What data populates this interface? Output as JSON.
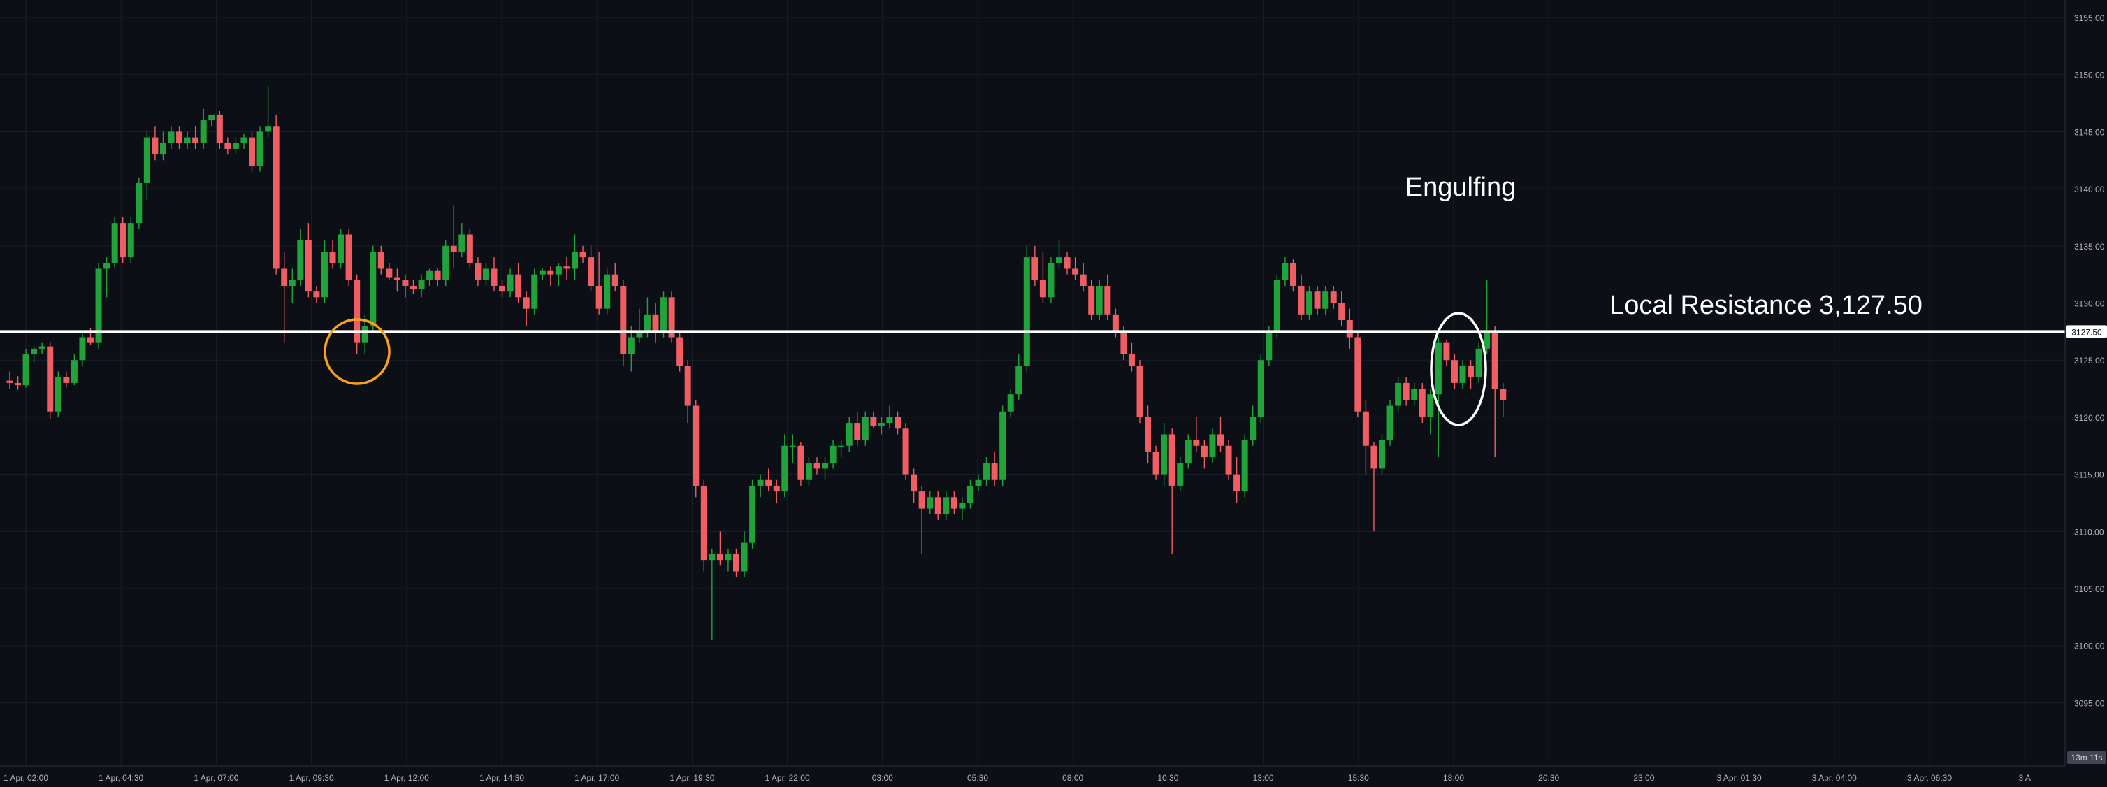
{
  "chart_data": {
    "type": "candlestick",
    "title": "",
    "xlabel": "",
    "ylabel": "",
    "ylim": [
      3092.5,
      3157.5
    ],
    "y_ticks": [
      "3155.00",
      "3150.00",
      "3145.00",
      "3140.00",
      "3135.00",
      "3130.00",
      "3125.00",
      "3120.00",
      "3115.00",
      "3110.00",
      "3105.00",
      "3100.00",
      "3095.00"
    ],
    "x_ticks": [
      "1 Apr, 02:00",
      "1 Apr, 04:30",
      "1 Apr, 07:00",
      "1 Apr, 09:30",
      "1 Apr, 12:00",
      "1 Apr, 14:30",
      "1 Apr, 17:00",
      "1 Apr, 19:30",
      "1 Apr, 22:00",
      "03:00",
      "05:30",
      "08:00",
      "10:30",
      "13:00",
      "15:30",
      "18:00",
      "20:30",
      "23:00",
      "3 Apr, 01:30",
      "3 Apr, 04:00",
      "3 Apr, 06:30",
      "3 A"
    ],
    "colors": {
      "up": "#089981",
      "up_bright": "#21a33b",
      "down": "#f23645",
      "down_bright": "#f05d63",
      "resistance": "#ffffff",
      "marker_orange": "#f7a21a",
      "marker_white": "#ffffff",
      "background": "#0d0f16",
      "grid": "#1c1f2b",
      "axis_text": "#b2b5be"
    },
    "resistance": {
      "value": 3127.5,
      "label": "3127.50"
    },
    "annotations": {
      "pattern": "Engulfing",
      "resistance_note": "Local Resistance 3,127.50"
    },
    "countdown": "13m 11s",
    "candles": [
      [
        3123.2,
        3124.0,
        3122.5,
        3123.0
      ],
      [
        3123.0,
        3123.6,
        3122.4,
        3122.8
      ],
      [
        3122.8,
        3126.0,
        3122.6,
        3125.5
      ],
      [
        3125.5,
        3126.2,
        3124.8,
        3126.0
      ],
      [
        3126.0,
        3126.5,
        3125.5,
        3126.2
      ],
      [
        3126.2,
        3126.6,
        3119.8,
        3120.5
      ],
      [
        3120.5,
        3124.0,
        3120.0,
        3123.5
      ],
      [
        3123.5,
        3124.0,
        3122.6,
        3123.0
      ],
      [
        3123.0,
        3125.5,
        3122.8,
        3125.0
      ],
      [
        3125.0,
        3127.5,
        3124.5,
        3127.0
      ],
      [
        3127.0,
        3127.8,
        3126.3,
        3126.5
      ],
      [
        3126.5,
        3133.5,
        3126.0,
        3133.0
      ],
      [
        3133.0,
        3134.0,
        3130.5,
        3133.5
      ],
      [
        3133.5,
        3137.5,
        3133.0,
        3137.0
      ],
      [
        3137.0,
        3137.5,
        3133.5,
        3134.0
      ],
      [
        3134.0,
        3137.5,
        3133.5,
        3137.0
      ],
      [
        3137.0,
        3141.0,
        3136.5,
        3140.5
      ],
      [
        3140.5,
        3145.0,
        3139.0,
        3144.5
      ],
      [
        3144.5,
        3145.5,
        3142.5,
        3143.0
      ],
      [
        3143.0,
        3145.0,
        3142.5,
        3144.0
      ],
      [
        3144.0,
        3145.5,
        3143.5,
        3145.0
      ],
      [
        3145.0,
        3145.5,
        3143.5,
        3144.0
      ],
      [
        3144.0,
        3145.0,
        3143.5,
        3144.5
      ],
      [
        3144.5,
        3145.5,
        3143.5,
        3144.0
      ],
      [
        3144.0,
        3147.0,
        3143.5,
        3146.0
      ],
      [
        3146.0,
        3146.5,
        3145.5,
        3146.5
      ],
      [
        3146.5,
        3146.8,
        3143.5,
        3144.0
      ],
      [
        3144.0,
        3144.5,
        3143.0,
        3143.5
      ],
      [
        3143.5,
        3144.5,
        3143.0,
        3144.0
      ],
      [
        3144.0,
        3144.8,
        3143.5,
        3144.5
      ],
      [
        3144.5,
        3145.0,
        3141.5,
        3142.0
      ],
      [
        3142.0,
        3145.5,
        3141.5,
        3145.0
      ],
      [
        3145.0,
        3149.0,
        3144.5,
        3145.5
      ],
      [
        3145.5,
        3146.5,
        3132.5,
        3133.0
      ],
      [
        3133.0,
        3134.5,
        3126.5,
        3131.5
      ],
      [
        3131.5,
        3133.0,
        3130.0,
        3132.0
      ],
      [
        3132.0,
        3136.5,
        3131.5,
        3135.5
      ],
      [
        3135.5,
        3137.0,
        3130.5,
        3131.0
      ],
      [
        3131.0,
        3131.5,
        3130.0,
        3130.5
      ],
      [
        3130.5,
        3135.5,
        3130.0,
        3134.5
      ],
      [
        3134.5,
        3135.5,
        3133.0,
        3133.5
      ],
      [
        3133.5,
        3136.5,
        3133.0,
        3136.0
      ],
      [
        3136.0,
        3136.5,
        3131.5,
        3132.0
      ],
      [
        3132.0,
        3132.5,
        3125.5,
        3126.5
      ],
      [
        3126.5,
        3129.0,
        3125.5,
        3128.0
      ],
      [
        3128.0,
        3135.0,
        3127.5,
        3134.5
      ],
      [
        3134.5,
        3135.0,
        3132.5,
        3133.0
      ],
      [
        3133.0,
        3133.5,
        3132.0,
        3132.2
      ],
      [
        3132.2,
        3133.0,
        3131.0,
        3132.0
      ],
      [
        3132.0,
        3132.5,
        3130.5,
        3131.5
      ],
      [
        3131.5,
        3132.0,
        3130.8,
        3131.2
      ],
      [
        3131.2,
        3132.5,
        3130.5,
        3132.0
      ],
      [
        3132.0,
        3133.0,
        3131.5,
        3132.8
      ],
      [
        3132.8,
        3133.0,
        3131.5,
        3132.0
      ],
      [
        3132.0,
        3135.5,
        3131.5,
        3135.0
      ],
      [
        3135.0,
        3138.5,
        3133.0,
        3134.5
      ],
      [
        3134.5,
        3137.0,
        3134.0,
        3136.0
      ],
      [
        3136.0,
        3136.5,
        3133.0,
        3133.5
      ],
      [
        3133.5,
        3134.0,
        3131.5,
        3132.0
      ],
      [
        3132.0,
        3133.5,
        3131.5,
        3133.0
      ],
      [
        3133.0,
        3134.0,
        3131.0,
        3131.5
      ],
      [
        3131.5,
        3132.0,
        3130.5,
        3131.0
      ],
      [
        3131.0,
        3133.0,
        3130.5,
        3132.5
      ],
      [
        3132.5,
        3133.5,
        3130.0,
        3130.5
      ],
      [
        3130.5,
        3131.0,
        3128.0,
        3129.5
      ],
      [
        3129.5,
        3133.0,
        3129.0,
        3132.5
      ],
      [
        3132.5,
        3133.0,
        3132.0,
        3132.8
      ],
      [
        3132.8,
        3133.2,
        3131.5,
        3132.5
      ],
      [
        3132.5,
        3133.5,
        3131.5,
        3133.2
      ],
      [
        3133.2,
        3134.0,
        3132.0,
        3133.0
      ],
      [
        3133.0,
        3136.0,
        3132.0,
        3134.5
      ],
      [
        3134.5,
        3135.0,
        3133.5,
        3134.0
      ],
      [
        3134.0,
        3135.0,
        3131.0,
        3131.5
      ],
      [
        3131.5,
        3134.5,
        3129.0,
        3129.5
      ],
      [
        3129.5,
        3133.0,
        3129.0,
        3132.5
      ],
      [
        3132.5,
        3133.5,
        3131.0,
        3131.5
      ],
      [
        3131.5,
        3132.0,
        3124.5,
        3125.5
      ],
      [
        3125.5,
        3128.0,
        3124.0,
        3127.0
      ],
      [
        3127.0,
        3129.5,
        3126.5,
        3127.5
      ],
      [
        3127.5,
        3130.5,
        3127.0,
        3129.0
      ],
      [
        3129.0,
        3130.0,
        3126.5,
        3127.5
      ],
      [
        3127.5,
        3131.0,
        3127.0,
        3130.5
      ],
      [
        3130.5,
        3131.0,
        3126.5,
        3127.0
      ],
      [
        3127.0,
        3127.5,
        3124.0,
        3124.5
      ],
      [
        3124.5,
        3125.0,
        3119.5,
        3121.0
      ],
      [
        3121.0,
        3121.5,
        3113.0,
        3114.0
      ],
      [
        3114.0,
        3114.5,
        3106.5,
        3107.5
      ],
      [
        3107.5,
        3108.5,
        3100.5,
        3108.0
      ],
      [
        3108.0,
        3110.0,
        3107.0,
        3107.5
      ],
      [
        3107.5,
        3108.5,
        3106.5,
        3108.0
      ],
      [
        3108.0,
        3108.5,
        3106.0,
        3106.5
      ],
      [
        3106.5,
        3110.0,
        3106.0,
        3109.0
      ],
      [
        3109.0,
        3114.5,
        3108.5,
        3114.0
      ],
      [
        3114.0,
        3115.0,
        3113.0,
        3114.5
      ],
      [
        3114.5,
        3115.5,
        3113.5,
        3114.0
      ],
      [
        3114.0,
        3114.5,
        3112.5,
        3113.5
      ],
      [
        3113.5,
        3118.5,
        3113.0,
        3117.5
      ],
      [
        3117.5,
        3118.5,
        3116.0,
        3117.5
      ],
      [
        3117.5,
        3117.8,
        3114.0,
        3114.5
      ],
      [
        3114.5,
        3116.5,
        3114.0,
        3116.0
      ],
      [
        3116.0,
        3116.5,
        3115.0,
        3115.5
      ],
      [
        3115.5,
        3116.5,
        3114.5,
        3116.0
      ],
      [
        3116.0,
        3118.0,
        3115.5,
        3117.5
      ],
      [
        3117.5,
        3118.0,
        3116.5,
        3117.5
      ],
      [
        3117.5,
        3120.0,
        3117.0,
        3119.5
      ],
      [
        3119.5,
        3120.5,
        3117.5,
        3118.0
      ],
      [
        3118.0,
        3120.5,
        3117.5,
        3120.0
      ],
      [
        3120.0,
        3120.5,
        3119.0,
        3119.2
      ],
      [
        3119.2,
        3120.0,
        3118.5,
        3119.5
      ],
      [
        3119.5,
        3121.0,
        3119.0,
        3120.0
      ],
      [
        3120.0,
        3120.5,
        3118.5,
        3119.0
      ],
      [
        3119.0,
        3119.5,
        3114.5,
        3115.0
      ],
      [
        3115.0,
        3115.5,
        3112.5,
        3113.5
      ],
      [
        3113.5,
        3114.0,
        3108.0,
        3112.0
      ],
      [
        3112.0,
        3113.5,
        3111.5,
        3113.0
      ],
      [
        3113.0,
        3113.5,
        3111.0,
        3111.5
      ],
      [
        3111.5,
        3113.5,
        3111.0,
        3113.0
      ],
      [
        3113.0,
        3113.5,
        3111.5,
        3112.0
      ],
      [
        3112.0,
        3113.0,
        3111.0,
        3112.5
      ],
      [
        3112.5,
        3114.5,
        3112.0,
        3114.0
      ],
      [
        3114.0,
        3115.0,
        3113.5,
        3114.5
      ],
      [
        3114.5,
        3116.5,
        3114.0,
        3116.0
      ],
      [
        3116.0,
        3117.0,
        3114.0,
        3114.5
      ],
      [
        3114.5,
        3121.0,
        3114.0,
        3120.5
      ],
      [
        3120.5,
        3122.5,
        3120.0,
        3122.0
      ],
      [
        3122.0,
        3125.5,
        3121.5,
        3124.5
      ],
      [
        3124.5,
        3135.0,
        3124.0,
        3134.0
      ],
      [
        3134.0,
        3135.0,
        3131.5,
        3132.0
      ],
      [
        3132.0,
        3134.5,
        3130.0,
        3130.5
      ],
      [
        3130.5,
        3134.0,
        3130.0,
        3133.5
      ],
      [
        3133.5,
        3135.5,
        3133.0,
        3134.0
      ],
      [
        3134.0,
        3134.5,
        3132.5,
        3133.0
      ],
      [
        3133.0,
        3134.0,
        3132.0,
        3132.5
      ],
      [
        3132.5,
        3133.5,
        3131.0,
        3131.5
      ],
      [
        3131.5,
        3132.0,
        3128.5,
        3129.0
      ],
      [
        3129.0,
        3132.0,
        3128.5,
        3131.5
      ],
      [
        3131.5,
        3132.5,
        3128.5,
        3129.0
      ],
      [
        3129.0,
        3129.5,
        3127.0,
        3127.5
      ],
      [
        3127.5,
        3128.0,
        3125.0,
        3125.5
      ],
      [
        3125.5,
        3126.5,
        3124.0,
        3124.5
      ],
      [
        3124.5,
        3125.0,
        3119.5,
        3120.0
      ],
      [
        3120.0,
        3121.0,
        3116.0,
        3117.0
      ],
      [
        3117.0,
        3117.5,
        3114.5,
        3115.0
      ],
      [
        3115.0,
        3119.5,
        3114.0,
        3118.5
      ],
      [
        3118.5,
        3119.0,
        3108.0,
        3114.0
      ],
      [
        3114.0,
        3116.5,
        3113.5,
        3116.0
      ],
      [
        3116.0,
        3118.5,
        3115.5,
        3118.0
      ],
      [
        3118.0,
        3120.0,
        3117.0,
        3117.5
      ],
      [
        3117.5,
        3118.0,
        3115.5,
        3116.5
      ],
      [
        3116.5,
        3119.0,
        3116.0,
        3118.5
      ],
      [
        3118.5,
        3120.0,
        3117.0,
        3117.5
      ],
      [
        3117.5,
        3118.0,
        3114.5,
        3115.0
      ],
      [
        3115.0,
        3116.5,
        3112.5,
        3113.5
      ],
      [
        3113.5,
        3118.5,
        3113.0,
        3118.0
      ],
      [
        3118.0,
        3121.0,
        3117.5,
        3120.0
      ],
      [
        3120.0,
        3125.5,
        3119.5,
        3125.0
      ],
      [
        3125.0,
        3128.0,
        3124.5,
        3127.5
      ],
      [
        3127.5,
        3132.5,
        3127.0,
        3132.0
      ],
      [
        3132.0,
        3134.0,
        3131.5,
        3133.5
      ],
      [
        3133.5,
        3133.8,
        3131.0,
        3131.5
      ],
      [
        3131.5,
        3132.5,
        3128.5,
        3129.0
      ],
      [
        3129.0,
        3131.5,
        3128.5,
        3131.0
      ],
      [
        3131.0,
        3131.5,
        3129.0,
        3129.5
      ],
      [
        3129.5,
        3131.5,
        3129.0,
        3131.0
      ],
      [
        3131.0,
        3131.5,
        3129.5,
        3130.0
      ],
      [
        3130.0,
        3131.0,
        3128.0,
        3128.5
      ],
      [
        3128.5,
        3129.5,
        3126.0,
        3127.0
      ],
      [
        3127.0,
        3127.5,
        3120.0,
        3120.5
      ],
      [
        3120.5,
        3121.5,
        3115.0,
        3117.5
      ],
      [
        3117.5,
        3117.8,
        3110.0,
        3115.5
      ],
      [
        3115.5,
        3118.5,
        3115.0,
        3118.0
      ],
      [
        3118.0,
        3121.5,
        3117.5,
        3121.0
      ],
      [
        3121.0,
        3123.5,
        3120.5,
        3123.0
      ],
      [
        3123.0,
        3123.5,
        3121.0,
        3121.5
      ],
      [
        3121.5,
        3123.0,
        3121.0,
        3122.5
      ],
      [
        3122.5,
        3123.0,
        3119.5,
        3120.0
      ],
      [
        3120.0,
        3122.5,
        3118.5,
        3122.0
      ],
      [
        3122.0,
        3127.0,
        3116.5,
        3126.5
      ],
      [
        3126.5,
        3126.8,
        3124.5,
        3125.0
      ],
      [
        3125.0,
        3125.5,
        3122.5,
        3123.0
      ],
      [
        3123.0,
        3125.0,
        3122.5,
        3124.5
      ],
      [
        3124.5,
        3125.0,
        3122.5,
        3123.5
      ],
      [
        3123.5,
        3126.5,
        3123.0,
        3126.0
      ],
      [
        3126.0,
        3132.0,
        3125.5,
        3127.5
      ],
      [
        3127.5,
        3128.0,
        3116.5,
        3122.5
      ],
      [
        3122.5,
        3123.0,
        3120.0,
        3121.5
      ]
    ]
  }
}
